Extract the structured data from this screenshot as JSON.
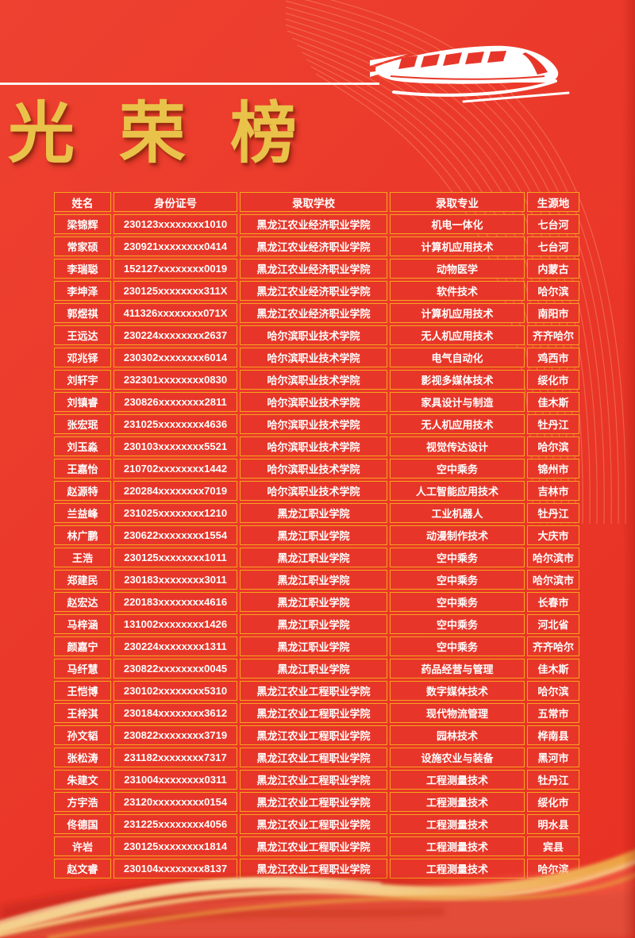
{
  "title": "光荣榜",
  "icons": {
    "train": "high-speed-train-icon",
    "divider": "white-speed-line",
    "top_right_decoration": "curved-line-pattern",
    "bottom_decoration": "golden-silk-wave"
  },
  "colors": {
    "background": "#e93628",
    "cell_background": "#e73629",
    "table_border": "#f6a41f",
    "title_gold": "#e9c24a",
    "text": "#ffffff",
    "wave_gold": "#f3c578"
  },
  "table": {
    "headers": [
      "姓名",
      "身份证号",
      "录取学校",
      "录取专业",
      "生源地"
    ],
    "rows": [
      [
        "梁锦辉",
        "230123xxxxxxxx1010",
        "黑龙江农业经济职业学院",
        "机电一体化",
        "七台河"
      ],
      [
        "常家硕",
        "230921xxxxxxxx0414",
        "黑龙江农业经济职业学院",
        "计算机应用技术",
        "七台河"
      ],
      [
        "李瑞聪",
        "152127xxxxxxxx0019",
        "黑龙江农业经济职业学院",
        "动物医学",
        "内蒙古"
      ],
      [
        "李坤泽",
        "230125xxxxxxxx311X",
        "黑龙江农业经济职业学院",
        "软件技术",
        "哈尔滨"
      ],
      [
        "郭煜祺",
        "411326xxxxxxxx071X",
        "黑龙江农业经济职业学院",
        "计算机应用技术",
        "南阳市"
      ],
      [
        "王远达",
        "230224xxxxxxxx2637",
        "哈尔滨职业技术学院",
        "无人机应用技术",
        "齐齐哈尔"
      ],
      [
        "邓兆铎",
        "230302xxxxxxxx6014",
        "哈尔滨职业技术学院",
        "电气自动化",
        "鸡西市"
      ],
      [
        "刘轩宇",
        "232301xxxxxxxx0830",
        "哈尔滨职业技术学院",
        "影视多媒体技术",
        "绥化市"
      ],
      [
        "刘镇睿",
        "230826xxxxxxxx2811",
        "哈尔滨职业技术学院",
        "家具设计与制造",
        "佳木斯"
      ],
      [
        "张宏珉",
        "231025xxxxxxxx4636",
        "哈尔滨职业技术学院",
        "无人机应用技术",
        "牡丹江"
      ],
      [
        "刘玉淼",
        "230103xxxxxxxx5521",
        "哈尔滨职业技术学院",
        "视觉传达设计",
        "哈尔滨"
      ],
      [
        "王嘉怡",
        "210702xxxxxxxx1442",
        "哈尔滨职业技术学院",
        "空中乘务",
        "锦州市"
      ],
      [
        "赵源特",
        "220284xxxxxxxx7019",
        "哈尔滨职业技术学院",
        "人工智能应用技术",
        "吉林市"
      ],
      [
        "兰益峰",
        "231025xxxxxxxx1210",
        "黑龙江职业学院",
        "工业机器人",
        "牡丹江"
      ],
      [
        "林广鹏",
        "230622xxxxxxxx1554",
        "黑龙江职业学院",
        "动漫制作技术",
        "大庆市"
      ],
      [
        "王浩",
        "230125xxxxxxxx1011",
        "黑龙江职业学院",
        "空中乘务",
        "哈尔滨市"
      ],
      [
        "郑建民",
        "230183xxxxxxxx3011",
        "黑龙江职业学院",
        "空中乘务",
        "哈尔滨市"
      ],
      [
        "赵宏达",
        "220183xxxxxxxx4616",
        "黑龙江职业学院",
        "空中乘务",
        "长春市"
      ],
      [
        "马梓涵",
        "131002xxxxxxxx1426",
        "黑龙江职业学院",
        "空中乘务",
        "河北省"
      ],
      [
        "颜嘉宁",
        "230224xxxxxxxx1311",
        "黑龙江职业学院",
        "空中乘务",
        "齐齐哈尔"
      ],
      [
        "马纤慧",
        "230822xxxxxxxx0045",
        "黑龙江职业学院",
        "药品经营与管理",
        "佳木斯"
      ],
      [
        "王恺博",
        "230102xxxxxxxx5310",
        "黑龙江农业工程职业学院",
        "数字媒体技术",
        "哈尔滨"
      ],
      [
        "王梓淇",
        "230184xxxxxxxx3612",
        "黑龙江农业工程职业学院",
        "现代物流管理",
        "五常市"
      ],
      [
        "孙文韬",
        "230822xxxxxxxx3719",
        "黑龙江农业工程职业学院",
        "园林技术",
        "桦南县"
      ],
      [
        "张松涛",
        "231182xxxxxxxx7317",
        "黑龙江农业工程职业学院",
        "设施农业与装备",
        "黑河市"
      ],
      [
        "朱建文",
        "231004xxxxxxxx0311",
        "黑龙江农业工程职业学院",
        "工程测量技术",
        "牡丹江"
      ],
      [
        "方宇浩",
        "23120xxxxxxxxx0154",
        "黑龙江农业工程职业学院",
        "工程测量技术",
        "绥化市"
      ],
      [
        "佟德国",
        "231225xxxxxxxx4056",
        "黑龙江农业工程职业学院",
        "工程测量技术",
        "明水县"
      ],
      [
        "许岩",
        "230125xxxxxxxx1814",
        "黑龙江农业工程职业学院",
        "工程测量技术",
        "宾县"
      ],
      [
        "赵文睿",
        "230104xxxxxxxx8137",
        "黑龙江农业工程职业学院",
        "工程测量技术",
        "哈尔滨"
      ]
    ]
  }
}
